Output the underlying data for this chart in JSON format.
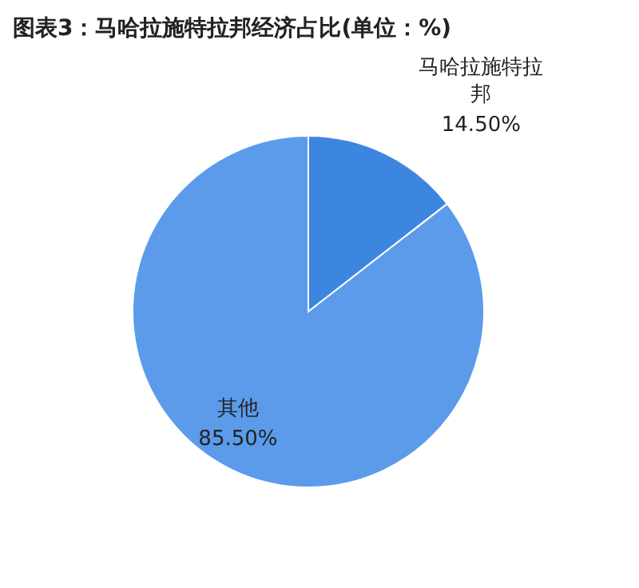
{
  "chart_data": {
    "type": "pie",
    "title": "图表3：马哈拉施特拉邦经济占比(单位：%)",
    "categories": [
      "马哈拉施特拉邦",
      "其他"
    ],
    "values": [
      14.5,
      85.5
    ],
    "value_labels": [
      "14.50%",
      "85.50%"
    ],
    "colors": [
      "#3d86e0",
      "#5b9bea"
    ]
  }
}
